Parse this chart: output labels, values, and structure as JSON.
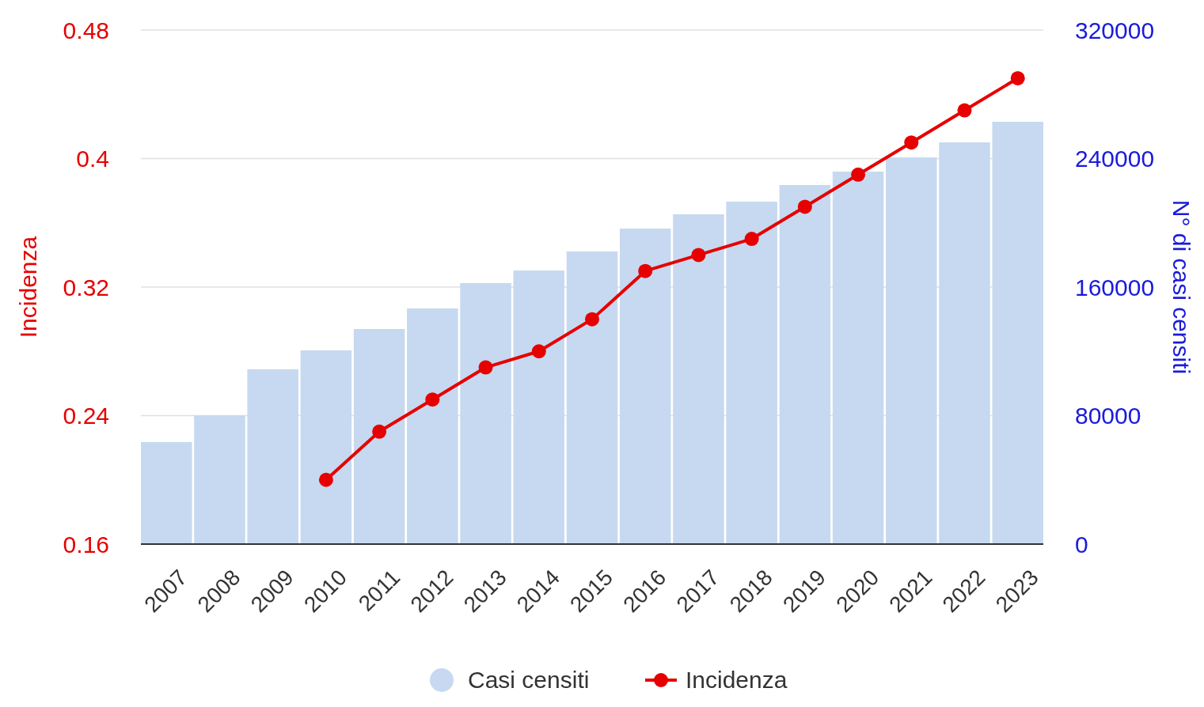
{
  "chart_data": {
    "type": "bar",
    "categories": [
      "2007",
      "2008",
      "2009",
      "2010",
      "2011",
      "2012",
      "2013",
      "2014",
      "2015",
      "2016",
      "2017",
      "2018",
      "2019",
      "2020",
      "2021",
      "2022",
      "2023"
    ],
    "series": [
      {
        "name": "Casi censiti",
        "axis": "y2",
        "color": "#c6d9f0",
        "values": [
          63500,
          80000,
          108800,
          120600,
          133900,
          146700,
          162500,
          170300,
          182200,
          196400,
          205300,
          213200,
          223500,
          231900,
          240700,
          250100,
          262900
        ]
      },
      {
        "name": "Incidenza",
        "type": "line",
        "axis": "y",
        "color": "#e60000",
        "values": [
          null,
          null,
          null,
          0.2,
          0.23,
          0.25,
          0.27,
          0.28,
          0.3,
          0.33,
          0.34,
          0.35,
          0.37,
          0.39,
          0.41,
          0.43,
          0.45
        ]
      }
    ],
    "ylabel": "Incidenza",
    "y2label": "N° di casi censiti",
    "ylim": [
      0.16,
      0.48
    ],
    "yticks": [
      0.16,
      0.24,
      0.32,
      0.4,
      0.48
    ],
    "y2lim": [
      0,
      320000
    ],
    "y2ticks": [
      0,
      80000,
      160000,
      240000,
      320000
    ],
    "grid": "y",
    "legend": "bottom",
    "marker": "circle",
    "line_style": "solid"
  }
}
